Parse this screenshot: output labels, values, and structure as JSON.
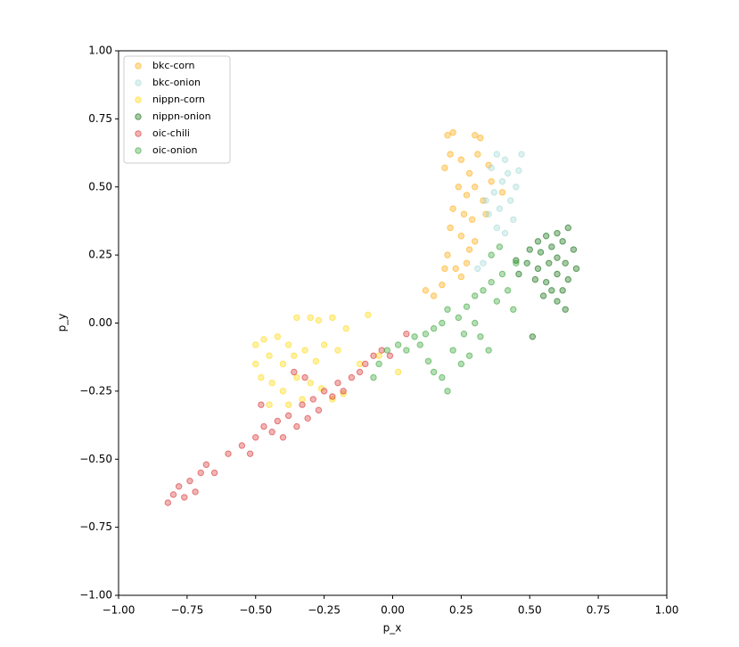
{
  "chart_data": {
    "type": "scatter",
    "xlabel": "p_x",
    "ylabel": "p_y",
    "xlim": [
      -1,
      1
    ],
    "ylim": [
      -1,
      1
    ],
    "xticks": [
      {
        "value": -1,
        "label": "−1.00"
      },
      {
        "value": -0.75,
        "label": "−0.75"
      },
      {
        "value": -0.5,
        "label": "−0.50"
      },
      {
        "value": -0.25,
        "label": "−0.25"
      },
      {
        "value": 0,
        "label": "0.00"
      },
      {
        "value": 0.25,
        "label": "0.25"
      },
      {
        "value": 0.5,
        "label": "0.50"
      },
      {
        "value": 0.75,
        "label": "0.75"
      },
      {
        "value": 1,
        "label": "1.00"
      }
    ],
    "yticks": [
      {
        "value": -1,
        "label": "−1.00"
      },
      {
        "value": -0.75,
        "label": "−0.75"
      },
      {
        "value": -0.5,
        "label": "−0.50"
      },
      {
        "value": -0.25,
        "label": "−0.25"
      },
      {
        "value": 0,
        "label": "0.00"
      },
      {
        "value": 0.25,
        "label": "0.25"
      },
      {
        "value": 0.5,
        "label": "0.50"
      },
      {
        "value": 0.75,
        "label": "0.75"
      },
      {
        "value": 1,
        "label": "1.00"
      }
    ],
    "legend": "upper left",
    "alpha": 0.35,
    "series": [
      {
        "name": "bkc-corn",
        "color": "#ffa500",
        "x": [
          0.2,
          0.22,
          0.3,
          0.32,
          0.19,
          0.25,
          0.28,
          0.31,
          0.35,
          0.24,
          0.27,
          0.3,
          0.33,
          0.22,
          0.26,
          0.29,
          0.34,
          0.21,
          0.25,
          0.3,
          0.2,
          0.23,
          0.27,
          0.19,
          0.25,
          0.15,
          0.12,
          0.18,
          0.36,
          0.4,
          0.21,
          0.28
        ],
        "y": [
          0.69,
          0.7,
          0.69,
          0.68,
          0.57,
          0.6,
          0.55,
          0.62,
          0.58,
          0.5,
          0.47,
          0.5,
          0.45,
          0.42,
          0.4,
          0.38,
          0.4,
          0.35,
          0.32,
          0.3,
          0.25,
          0.2,
          0.22,
          0.2,
          0.17,
          0.1,
          0.12,
          0.14,
          0.52,
          0.48,
          0.62,
          0.27
        ]
      },
      {
        "name": "bkc-onion",
        "color": "#9ed8d3",
        "x": [
          0.38,
          0.41,
          0.47,
          0.42,
          0.45,
          0.4,
          0.37,
          0.43,
          0.39,
          0.35,
          0.44,
          0.38,
          0.41,
          0.46,
          0.36,
          0.34,
          0.33,
          0.31
        ],
        "y": [
          0.62,
          0.6,
          0.62,
          0.55,
          0.5,
          0.52,
          0.48,
          0.45,
          0.42,
          0.4,
          0.38,
          0.35,
          0.33,
          0.56,
          0.57,
          0.45,
          0.22,
          0.2
        ]
      },
      {
        "name": "nippn-corn",
        "color": "#ffd700",
        "x": [
          -0.5,
          -0.47,
          -0.42,
          -0.38,
          -0.35,
          -0.3,
          -0.27,
          -0.22,
          -0.17,
          -0.09,
          -0.45,
          -0.4,
          -0.36,
          -0.32,
          -0.28,
          -0.25,
          -0.2,
          -0.48,
          -0.44,
          -0.4,
          -0.35,
          -0.3,
          -0.26,
          -0.22,
          -0.18,
          -0.45,
          -0.38,
          -0.12,
          -0.05,
          0.02,
          -0.5,
          -0.33
        ],
        "y": [
          -0.08,
          -0.06,
          -0.05,
          -0.08,
          0.02,
          0.02,
          0.01,
          0.02,
          -0.02,
          0.03,
          -0.12,
          -0.15,
          -0.12,
          -0.1,
          -0.14,
          -0.08,
          -0.1,
          -0.2,
          -0.22,
          -0.25,
          -0.2,
          -0.22,
          -0.24,
          -0.28,
          -0.26,
          -0.3,
          -0.3,
          -0.15,
          -0.12,
          -0.18,
          -0.15,
          -0.28
        ]
      },
      {
        "name": "nippn-onion",
        "color": "#006400",
        "x": [
          0.53,
          0.56,
          0.6,
          0.64,
          0.5,
          0.54,
          0.58,
          0.62,
          0.66,
          0.45,
          0.49,
          0.53,
          0.57,
          0.6,
          0.63,
          0.67,
          0.52,
          0.56,
          0.6,
          0.64,
          0.55,
          0.6,
          0.63,
          0.58,
          0.51,
          0.62,
          0.46
        ],
        "y": [
          0.3,
          0.32,
          0.33,
          0.35,
          0.27,
          0.26,
          0.28,
          0.3,
          0.27,
          0.23,
          0.22,
          0.2,
          0.22,
          0.24,
          0.22,
          0.2,
          0.16,
          0.15,
          0.18,
          0.16,
          0.1,
          0.08,
          0.05,
          0.12,
          -0.05,
          0.12,
          0.18
        ]
      },
      {
        "name": "oic-chili",
        "color": "#d62728",
        "x": [
          -0.82,
          -0.8,
          -0.78,
          -0.76,
          -0.74,
          -0.72,
          -0.7,
          -0.68,
          -0.65,
          -0.6,
          -0.55,
          -0.5,
          -0.47,
          -0.44,
          -0.42,
          -0.4,
          -0.38,
          -0.35,
          -0.33,
          -0.31,
          -0.29,
          -0.27,
          -0.25,
          -0.22,
          -0.2,
          -0.18,
          -0.15,
          -0.12,
          -0.1,
          -0.07,
          -0.04,
          -0.36,
          -0.32,
          -0.48,
          -0.52,
          0.05,
          -0.01
        ],
        "y": [
          -0.66,
          -0.63,
          -0.6,
          -0.64,
          -0.58,
          -0.62,
          -0.55,
          -0.52,
          -0.55,
          -0.48,
          -0.45,
          -0.42,
          -0.38,
          -0.4,
          -0.36,
          -0.42,
          -0.34,
          -0.38,
          -0.3,
          -0.35,
          -0.28,
          -0.32,
          -0.25,
          -0.27,
          -0.22,
          -0.25,
          -0.2,
          -0.18,
          -0.15,
          -0.12,
          -0.1,
          -0.18,
          -0.2,
          -0.3,
          -0.48,
          -0.04,
          -0.12
        ]
      },
      {
        "name": "oic-onion",
        "color": "#2ca02c",
        "x": [
          -0.05,
          -0.02,
          0.02,
          0.05,
          0.08,
          0.1,
          0.12,
          0.15,
          0.15,
          0.18,
          0.2,
          0.22,
          0.25,
          0.28,
          0.18,
          0.2,
          0.24,
          0.27,
          0.3,
          0.32,
          0.35,
          0.3,
          0.33,
          0.36,
          0.38,
          0.4,
          0.42,
          0.44,
          0.36,
          0.39,
          0.45,
          0.26,
          -0.07,
          0.13
        ],
        "y": [
          -0.15,
          -0.1,
          -0.08,
          -0.1,
          -0.05,
          -0.08,
          -0.04,
          -0.02,
          -0.18,
          -0.2,
          -0.25,
          -0.1,
          -0.15,
          -0.12,
          0.0,
          0.05,
          0.02,
          0.06,
          0.0,
          -0.05,
          -0.1,
          0.1,
          0.12,
          0.15,
          0.08,
          0.18,
          0.12,
          0.05,
          0.25,
          0.28,
          0.22,
          -0.04,
          -0.2,
          -0.14
        ]
      }
    ]
  }
}
